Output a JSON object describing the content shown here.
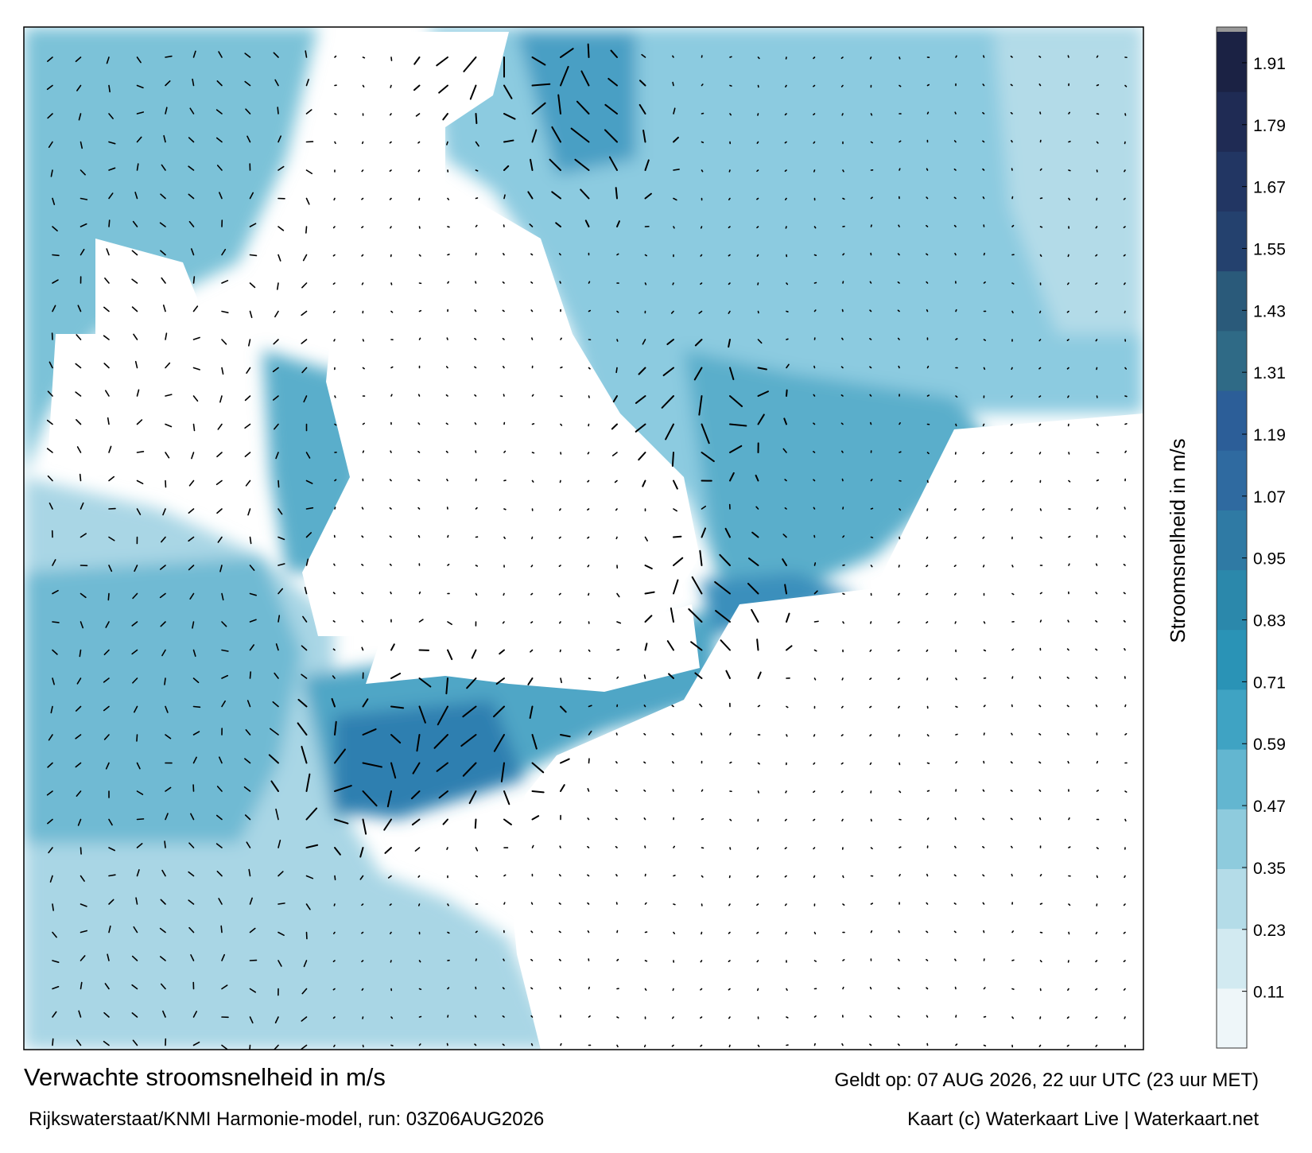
{
  "chart_data": {
    "type": "colormap",
    "title": "Verwachte stroomsnelheid in m/s",
    "subtitle": "Rijkswaterstaat/KNMI Harmonie-model, run: 03Z06AUG2026",
    "valid_time": "Geldt op: 07 AUG 2026, 22 uur UTC (23 uur MET)",
    "credit": "Kaart (c) Waterkaart Live | Waterkaart.net",
    "colorbar_label": "Stroomsnelheid in m/s",
    "ylim": [
      0,
      1.97
    ],
    "yticks": [
      0.11,
      0.23,
      0.35,
      0.47,
      0.59,
      0.71,
      0.83,
      0.95,
      1.07,
      1.19,
      1.31,
      1.43,
      1.55,
      1.67,
      1.79,
      1.91
    ],
    "colors": [
      "#eef6f9",
      "#d2eaf1",
      "#b4dce8",
      "#8ecbdd",
      "#63b6d0",
      "#3fa3c3",
      "#2a93b6",
      "#2b88ab",
      "#2f7aa4",
      "#2f6aa0",
      "#2c5e98",
      "#2f6a86",
      "#2a5a7a",
      "#24416e",
      "#223663",
      "#1f2b54",
      "#1b2244"
    ]
  }
}
